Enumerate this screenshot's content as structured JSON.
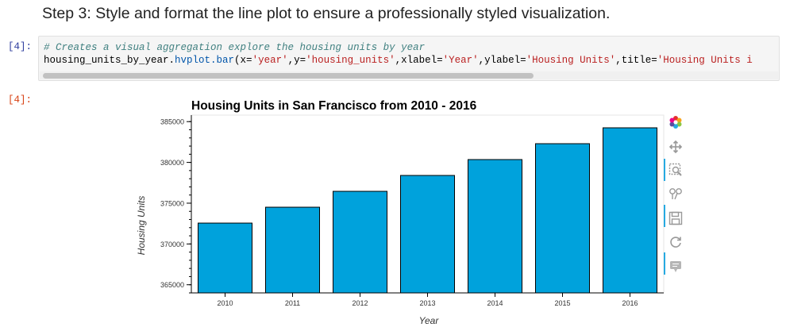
{
  "heading": "Step 3: Style and format the line plot to ensure a professionally styled visualization.",
  "cell": {
    "input_prompt": "[4]:",
    "output_prompt": "[4]:",
    "code_comment": "# Creates a visual aggregation explore the housing units by year",
    "code": {
      "obj": "housing_units_by_year.",
      "attr": "hvplot.bar",
      "p1": "(x=",
      "s1": "'year'",
      "p2": ",y=",
      "s2": "'housing_units'",
      "p3": ",xlabel=",
      "s3": "'Year'",
      "p4": ",ylabel=",
      "s4": "'Housing Units'",
      "p5": ",title=",
      "s5": "'Housing Units i"
    }
  },
  "chart_data": {
    "type": "bar",
    "title": "Housing Units in San Francisco from 2010 - 2016",
    "xlabel": "Year",
    "ylabel": "Housing Units",
    "categories": [
      "2010",
      "2011",
      "2012",
      "2013",
      "2014",
      "2015",
      "2016"
    ],
    "values": [
      372560,
      374507,
      376454,
      378401,
      380348,
      382295,
      384242
    ],
    "ylim": [
      364000,
      385800
    ],
    "yticks": [
      365000,
      370000,
      375000,
      380000,
      385000
    ],
    "ytick_labels": [
      "365000",
      "370000",
      "375000",
      "380000",
      "385000"
    ],
    "bar_color": "#00a2dc",
    "grid": false
  },
  "toolbar": {
    "items": [
      "bokeh-logo-icon",
      "pan-icon",
      "box-zoom-icon",
      "wheel-zoom-icon",
      "save-icon",
      "reset-icon",
      "hover-icon"
    ]
  }
}
